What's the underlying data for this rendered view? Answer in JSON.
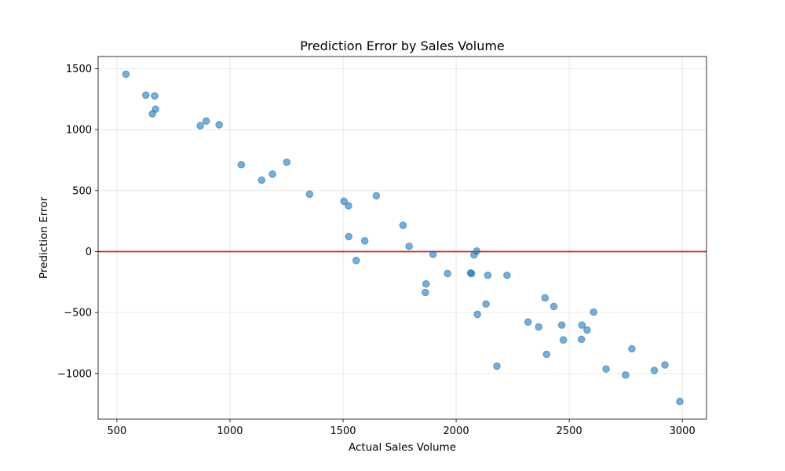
{
  "chart_data": {
    "type": "scatter",
    "title": "Prediction Error by Sales Volume",
    "xlabel": "Actual Sales Volume",
    "ylabel": "Prediction Error",
    "xlim": [
      417,
      3107
    ],
    "ylim": [
      -1375,
      1600
    ],
    "xticks": [
      500,
      1000,
      1500,
      2000,
      2500,
      3000
    ],
    "yticks": [
      -1000,
      -500,
      0,
      500,
      1000,
      1500
    ],
    "xtick_labels": [
      "500",
      "1000",
      "1500",
      "2000",
      "2500",
      "3000"
    ],
    "ytick_labels": [
      "−1000",
      "−500",
      "0",
      "500",
      "1000",
      "1500"
    ],
    "grid": true,
    "reference_line": {
      "y": 0,
      "color": "#d62728"
    },
    "point_color": "#1f77b4",
    "points": [
      {
        "x": 540,
        "y": 1455
      },
      {
        "x": 628,
        "y": 1283
      },
      {
        "x": 667,
        "y": 1277
      },
      {
        "x": 671,
        "y": 1168
      },
      {
        "x": 657,
        "y": 1130
      },
      {
        "x": 895,
        "y": 1071
      },
      {
        "x": 869,
        "y": 1033
      },
      {
        "x": 952,
        "y": 1040
      },
      {
        "x": 1050,
        "y": 713
      },
      {
        "x": 1140,
        "y": 586
      },
      {
        "x": 1188,
        "y": 635
      },
      {
        "x": 1251,
        "y": 733
      },
      {
        "x": 1352,
        "y": 471
      },
      {
        "x": 1504,
        "y": 413
      },
      {
        "x": 1524,
        "y": 376
      },
      {
        "x": 1647,
        "y": 458
      },
      {
        "x": 1525,
        "y": 123
      },
      {
        "x": 1596,
        "y": 88
      },
      {
        "x": 1558,
        "y": -73
      },
      {
        "x": 1765,
        "y": 215
      },
      {
        "x": 1792,
        "y": 43
      },
      {
        "x": 1898,
        "y": -22
      },
      {
        "x": 1962,
        "y": -180
      },
      {
        "x": 1867,
        "y": -265
      },
      {
        "x": 1864,
        "y": -335
      },
      {
        "x": 2064,
        "y": -176
      },
      {
        "x": 2068,
        "y": -180
      },
      {
        "x": 2079,
        "y": -27
      },
      {
        "x": 2091,
        "y": 4
      },
      {
        "x": 2140,
        "y": -195
      },
      {
        "x": 2225,
        "y": -195
      },
      {
        "x": 2132,
        "y": -430
      },
      {
        "x": 2094,
        "y": -515
      },
      {
        "x": 2180,
        "y": -940
      },
      {
        "x": 2318,
        "y": -578
      },
      {
        "x": 2365,
        "y": -618
      },
      {
        "x": 2393,
        "y": -380
      },
      {
        "x": 2432,
        "y": -450
      },
      {
        "x": 2400,
        "y": -843
      },
      {
        "x": 2467,
        "y": -603
      },
      {
        "x": 2474,
        "y": -725
      },
      {
        "x": 2556,
        "y": -603
      },
      {
        "x": 2579,
        "y": -643
      },
      {
        "x": 2554,
        "y": -720
      },
      {
        "x": 2608,
        "y": -496
      },
      {
        "x": 2663,
        "y": -963
      },
      {
        "x": 2749,
        "y": -1013
      },
      {
        "x": 2777,
        "y": -797
      },
      {
        "x": 2876,
        "y": -975
      },
      {
        "x": 2923,
        "y": -930
      },
      {
        "x": 2989,
        "y": -1230
      }
    ]
  }
}
